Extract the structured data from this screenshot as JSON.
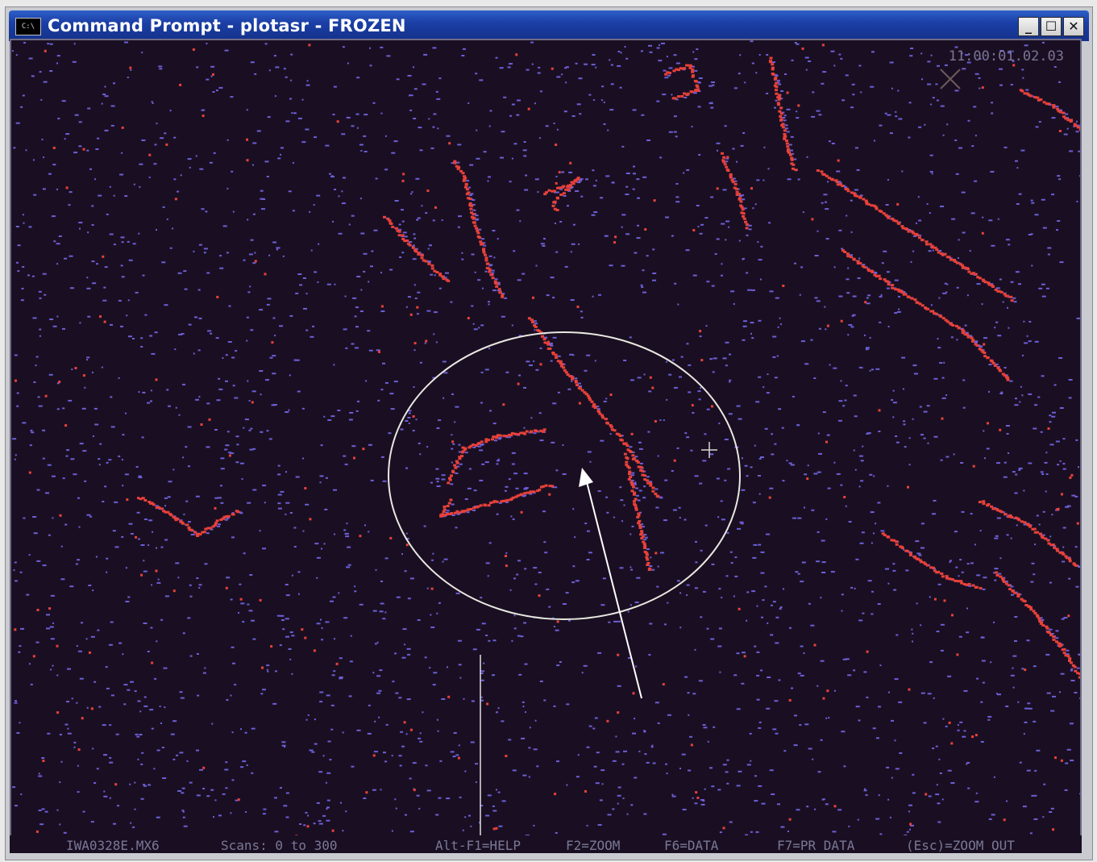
{
  "window": {
    "title": "Command Prompt - plotasr - FROZEN",
    "system_icon_label": "C:\\",
    "controls": {
      "minimize": "_",
      "maximize": "☐",
      "close": "✕"
    }
  },
  "radar": {
    "timestamp": "11:00:01.02.03",
    "colors": {
      "background": "#1a0f22",
      "primary_returns": "#e8413a",
      "secondary_returns": "#6c5fd8",
      "circle": "#e8e8e0",
      "arrow": "#ffffff"
    }
  },
  "status_bar": {
    "file": "IWA0328E.MX6",
    "scans": "Scans: 0 to 300",
    "help": "Alt-F1=HELP",
    "zoom": "F2=ZOOM",
    "data": "F6=DATA",
    "pr_data": "F7=PR DATA",
    "zoom_out": "(Esc)=ZOOM OUT"
  }
}
